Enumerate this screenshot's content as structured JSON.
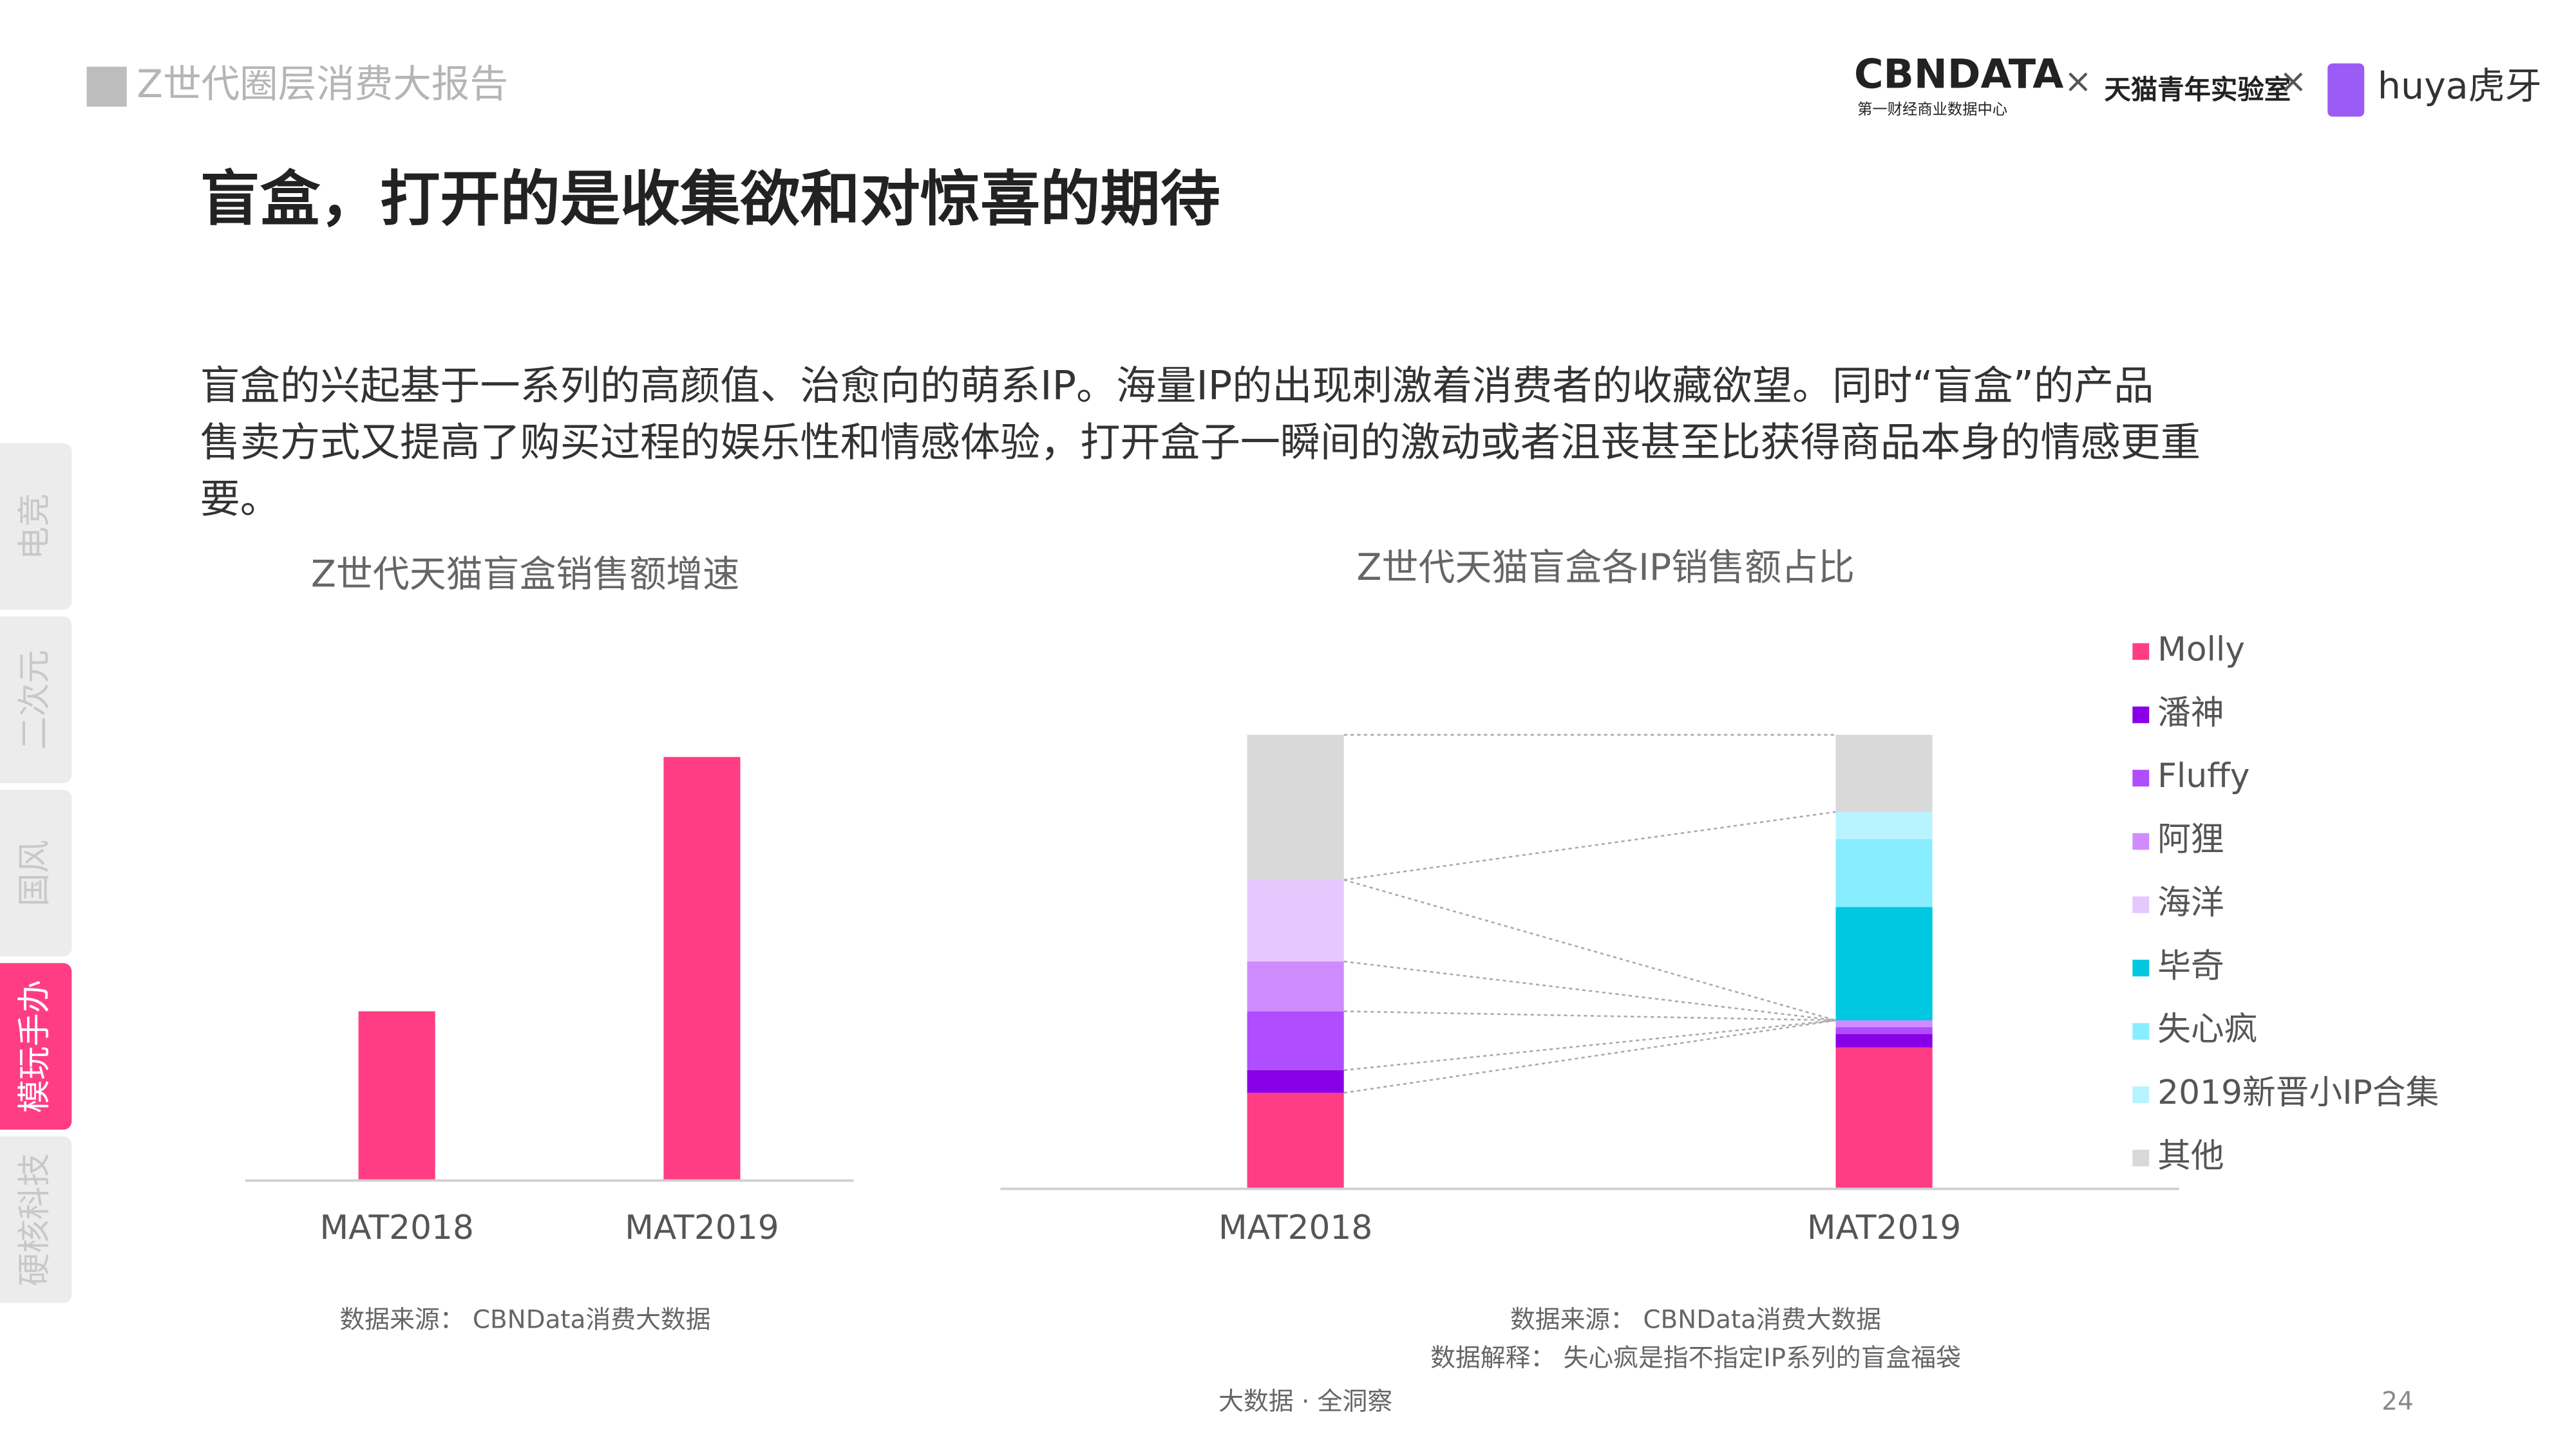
{
  "header": {
    "report": "Z世代圈层消费大报告",
    "logos": [
      "CBNDATA",
      "第一财经商业数据中心",
      "×",
      "天猫青年实验室",
      "×",
      "huya虎牙"
    ]
  },
  "title": "盲盒，打开的是收集欲和对惊喜的期待",
  "body": [
    "盲盒的兴起基于一系列的高颜值、治愈向的萌系IP。海量IP的出现刺激着消费者的收藏欲望。同时“盲盒”的产品",
    "售卖方式又提高了购买过程的娱乐性和情感体验，打开盒子一瞬间的激动或者沮丧甚至比获得商品本身的情感更重",
    "要。"
  ],
  "tabs": [
    "电竞",
    "二次元",
    "国风",
    "模玩手办",
    "硬核科技"
  ],
  "chart_data": [
    {
      "type": "bar",
      "title": "Z世代天猫盲盒销售额增速",
      "categories": [
        "MAT2018",
        "MAT2019"
      ],
      "values": [
        1,
        2.51
      ],
      "color": "#ff3d85",
      "ylim": [
        0,
        2.8
      ],
      "source": "数据来源： CBNData消费大数据"
    },
    {
      "type": "stacked_bar",
      "title": "Z世代天猫盲盒各IP销售额占比",
      "categories": [
        "MAT2018",
        "MAT2019"
      ],
      "ylim": [
        0,
        100
      ],
      "series": [
        {
          "name": "Molly",
          "color": "#ff3d85",
          "values": [
            21,
            31
          ]
        },
        {
          "name": "潘神",
          "color": "#8a00e6",
          "values": [
            5,
            3
          ]
        },
        {
          "name": "Fluffy",
          "color": "#b04dff",
          "values": [
            13,
            1.5
          ]
        },
        {
          "name": "阿狸",
          "color": "#d08cff",
          "values": [
            11,
            1.5
          ]
        },
        {
          "name": "海洋",
          "color": "#e6c8ff",
          "values": [
            18,
            0
          ]
        },
        {
          "name": "毕奇",
          "color": "#00c8e0",
          "values": [
            0,
            25
          ]
        },
        {
          "name": "失心疯",
          "color": "#88eeff",
          "values": [
            0,
            15
          ]
        },
        {
          "name": "2019新晋小IP合集",
          "color": "#b8f4ff",
          "values": [
            0,
            6
          ]
        },
        {
          "name": "其他",
          "color": "#d9d9d9",
          "values": [
            32,
            17
          ]
        }
      ],
      "source": "数据来源： CBNData消费大数据",
      "note": "数据解释： 失心疯是指不指定IP系列的盲盒福袋"
    }
  ],
  "footer": {
    "slogan": "大数据 · 全洞察",
    "page": "24"
  }
}
